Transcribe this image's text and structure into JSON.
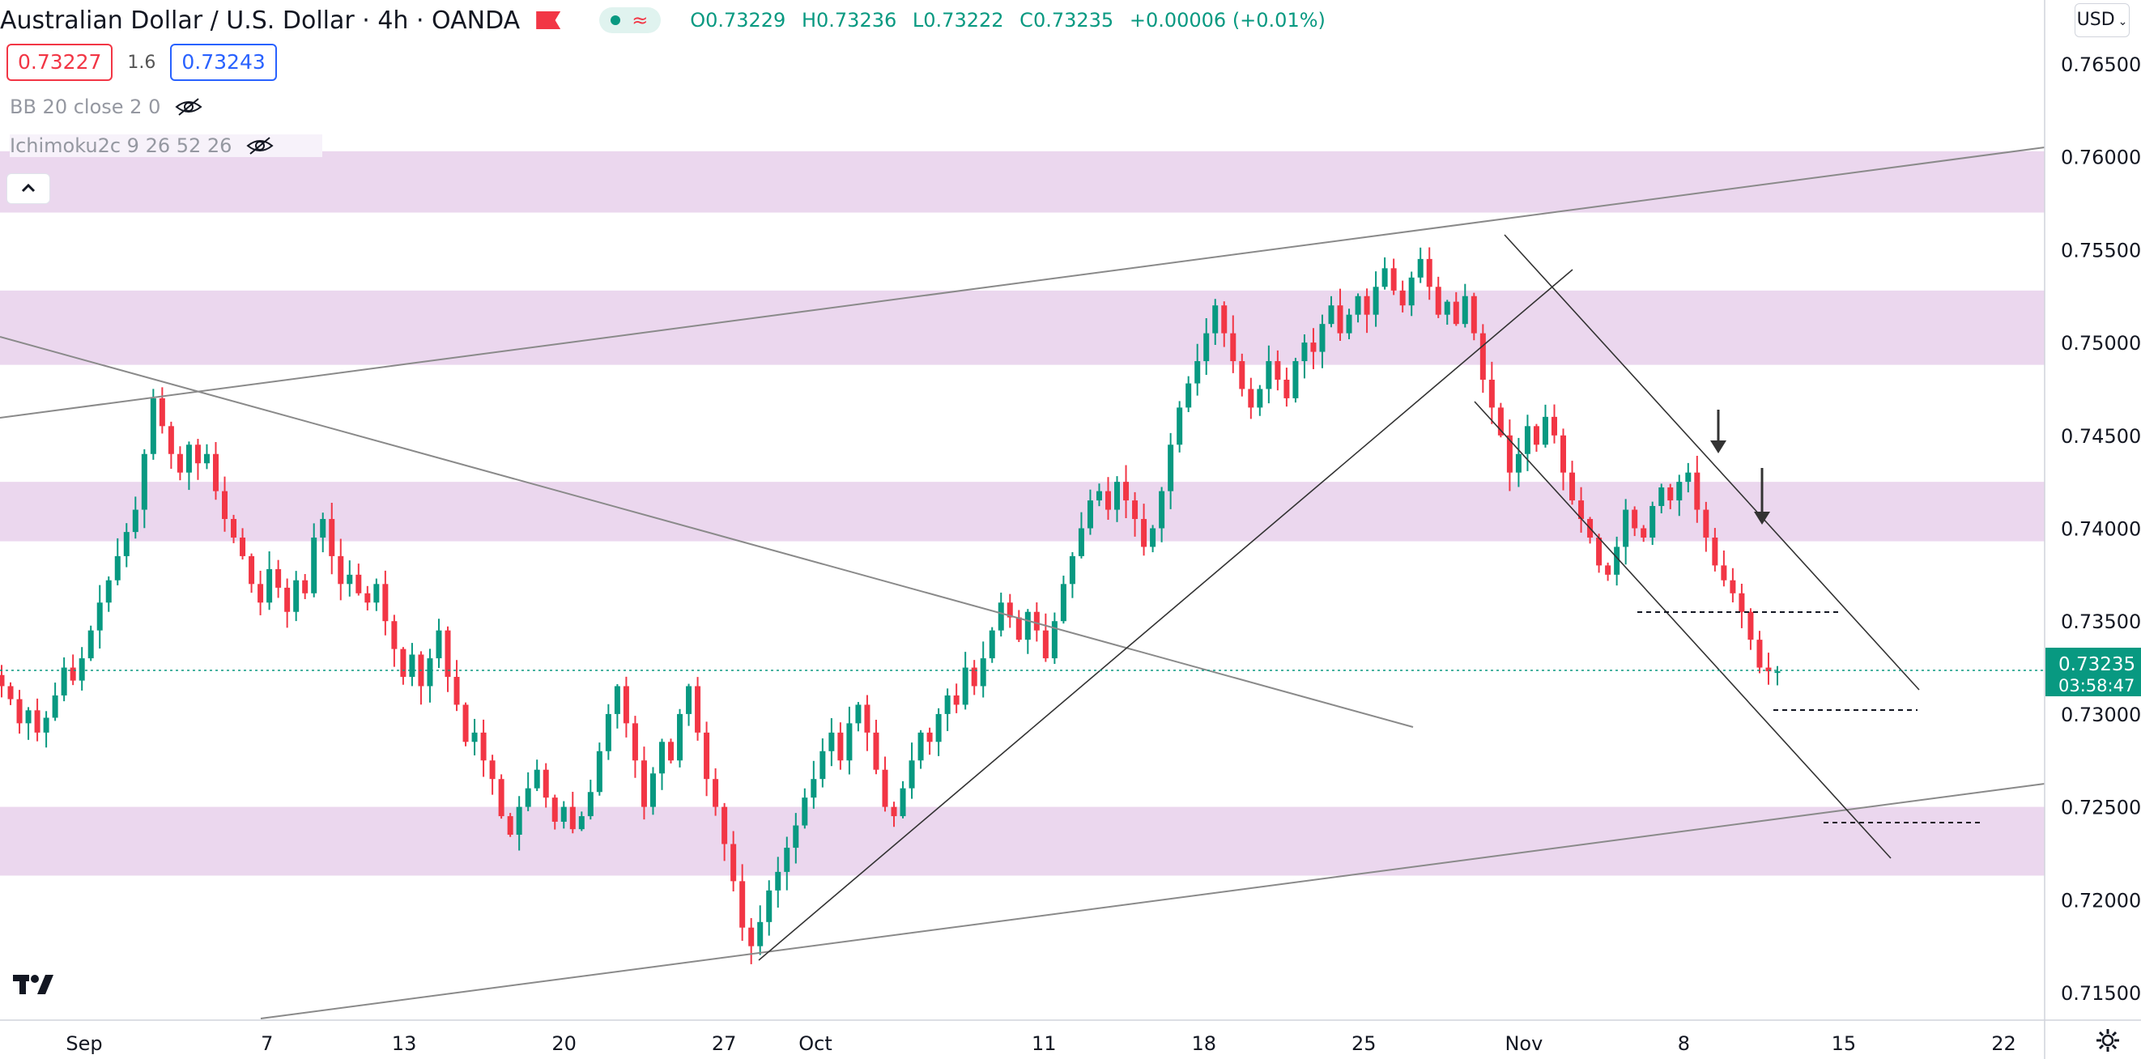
{
  "header": {
    "title": "Australian Dollar / U.S. Dollar · 4h · OANDA",
    "ohlc": {
      "o_label": "O",
      "o": "0.73229",
      "h_label": "H",
      "h": "0.73236",
      "l_label": "L",
      "l": "0.73222",
      "c_label": "C",
      "c": "0.73235",
      "change": "+0.00006 (+0.01%)"
    }
  },
  "trade": {
    "sell": "0.73227",
    "spread": "1.6",
    "buy": "0.73243"
  },
  "indicators": [
    {
      "label": "BB 20 close 2 0"
    },
    {
      "label": "Ichimoku2c 9 26 52 26"
    }
  ],
  "currency": "USD",
  "last_price": {
    "value": "0.73235",
    "countdown": "03:58:47"
  },
  "chart_data": {
    "type": "candlestick",
    "ylim": [
      0.7125,
      0.767
    ],
    "y_ticks": [
      "0.76500",
      "0.76000",
      "0.75500",
      "0.75000",
      "0.74500",
      "0.74000",
      "0.73500",
      "0.73000",
      "0.72500",
      "0.72000",
      "0.71500"
    ],
    "x_ticks": [
      {
        "label": "Sep",
        "day": -1
      },
      {
        "label": "7",
        "day": 7
      },
      {
        "label": "13",
        "day": 13
      },
      {
        "label": "20",
        "day": 20
      },
      {
        "label": "27",
        "day": 27
      },
      {
        "label": "Oct",
        "day": 31
      },
      {
        "label": "11",
        "day": 41
      },
      {
        "label": "18",
        "day": 48
      },
      {
        "label": "25",
        "day": 55
      },
      {
        "label": "Nov",
        "day": 62
      },
      {
        "label": "8",
        "day": 69
      },
      {
        "label": "15",
        "day": 76
      },
      {
        "label": "22",
        "day": 83
      }
    ],
    "closes": [
      0.7315,
      0.7308,
      0.7295,
      0.7302,
      0.729,
      0.7298,
      0.731,
      0.7325,
      0.7318,
      0.733,
      0.7345,
      0.736,
      0.7372,
      0.7385,
      0.7398,
      0.741,
      0.744,
      0.747,
      0.7455,
      0.744,
      0.743,
      0.7445,
      0.7435,
      0.744,
      0.742,
      0.7405,
      0.7395,
      0.7385,
      0.737,
      0.736,
      0.7378,
      0.7368,
      0.7355,
      0.7372,
      0.7365,
      0.7395,
      0.7405,
      0.7385,
      0.737,
      0.7375,
      0.7365,
      0.736,
      0.737,
      0.735,
      0.7335,
      0.732,
      0.7332,
      0.7315,
      0.733,
      0.7345,
      0.732,
      0.7305,
      0.7285,
      0.729,
      0.7275,
      0.7265,
      0.7245,
      0.7235,
      0.725,
      0.726,
      0.727,
      0.7255,
      0.7242,
      0.725,
      0.7238,
      0.7245,
      0.7258,
      0.728,
      0.73,
      0.7315,
      0.7295,
      0.7275,
      0.725,
      0.7268,
      0.7285,
      0.7275,
      0.73,
      0.7315,
      0.729,
      0.7265,
      0.725,
      0.723,
      0.721,
      0.7185,
      0.7175,
      0.7188,
      0.7205,
      0.7215,
      0.7228,
      0.724,
      0.7255,
      0.7265,
      0.728,
      0.729,
      0.7275,
      0.7295,
      0.7305,
      0.729,
      0.727,
      0.725,
      0.7245,
      0.726,
      0.7275,
      0.729,
      0.7285,
      0.73,
      0.731,
      0.7305,
      0.7325,
      0.7315,
      0.733,
      0.7345,
      0.736,
      0.7352,
      0.734,
      0.7355,
      0.7345,
      0.733,
      0.735,
      0.737,
      0.7385,
      0.74,
      0.7415,
      0.742,
      0.741,
      0.7425,
      0.7415,
      0.7405,
      0.739,
      0.74,
      0.742,
      0.7445,
      0.7465,
      0.7478,
      0.749,
      0.7505,
      0.752,
      0.7505,
      0.749,
      0.7475,
      0.7465,
      0.7475,
      0.749,
      0.748,
      0.747,
      0.749,
      0.75,
      0.7495,
      0.751,
      0.752,
      0.7505,
      0.7515,
      0.7525,
      0.7515,
      0.753,
      0.754,
      0.7528,
      0.752,
      0.7535,
      0.7545,
      0.753,
      0.7515,
      0.7522,
      0.751,
      0.7525,
      0.7505,
      0.748,
      0.7465,
      0.745,
      0.743,
      0.744,
      0.7455,
      0.7445,
      0.746,
      0.745,
      0.743,
      0.7415,
      0.7405,
      0.7395,
      0.738,
      0.7375,
      0.739,
      0.741,
      0.74,
      0.7395,
      0.7412,
      0.7422,
      0.7415,
      0.7425,
      0.743,
      0.741,
      0.7395,
      0.738,
      0.7372,
      0.7365,
      0.7355,
      0.734,
      0.7325,
      0.7323,
      0.7323
    ],
    "trendlines_note": "",
    "zones": [
      [
        0.757,
        0.7603
      ],
      [
        0.7488,
        0.7528
      ],
      [
        0.7393,
        0.7425
      ],
      [
        0.7213,
        0.725
      ]
    ]
  }
}
